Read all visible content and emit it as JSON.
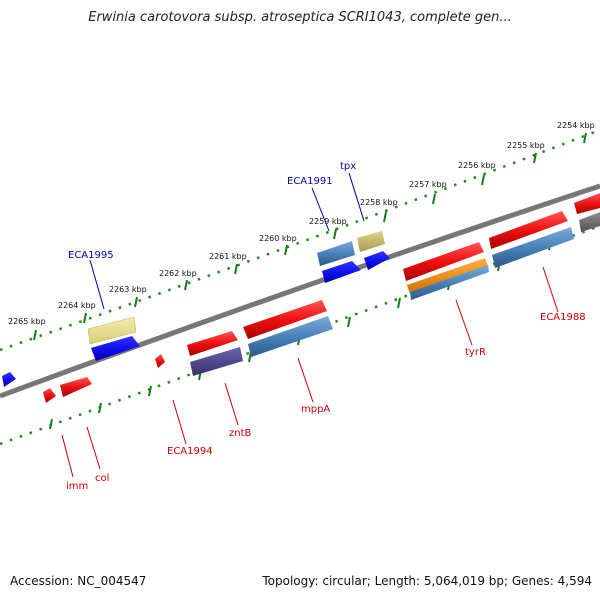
{
  "title": "Erwinia carotovora subsp. atroseptica SCRI1043, complete gen...",
  "footer": {
    "accession": "Accession: NC_004547",
    "summary": "Topology: circular; Length: 5,064,019 bp; Genes: 4,594"
  },
  "scale_labels": [
    "2254 kbp",
    "2255 kbp",
    "2256 kbp",
    "2257 kbp",
    "2258 kbp",
    "2259 kbp",
    "2260 kbp",
    "2261 kbp",
    "2262 kbp",
    "2263 kbp",
    "2264 kbp",
    "2265 kbp"
  ],
  "gene_labels_top": [
    "ECA1991",
    "tpx",
    "ECA1995"
  ],
  "gene_labels_bottom": [
    "ECA1988",
    "tyrR",
    "mppA",
    "ECA1994",
    "zntB",
    "col",
    "imm"
  ],
  "colors": {
    "forward_red": "#ee1111",
    "reverse_blue": "#1111ee",
    "steel_blue": "#4a82b8",
    "khaki": "#e6dc8a",
    "olive_khaki": "#c9bd6e",
    "dark_slate": "#4a4488",
    "orange": "#f09010",
    "grey": "#707070",
    "ruler_green": "#228822",
    "label_blue": "#0000aa",
    "label_red": "#cc0000"
  }
}
